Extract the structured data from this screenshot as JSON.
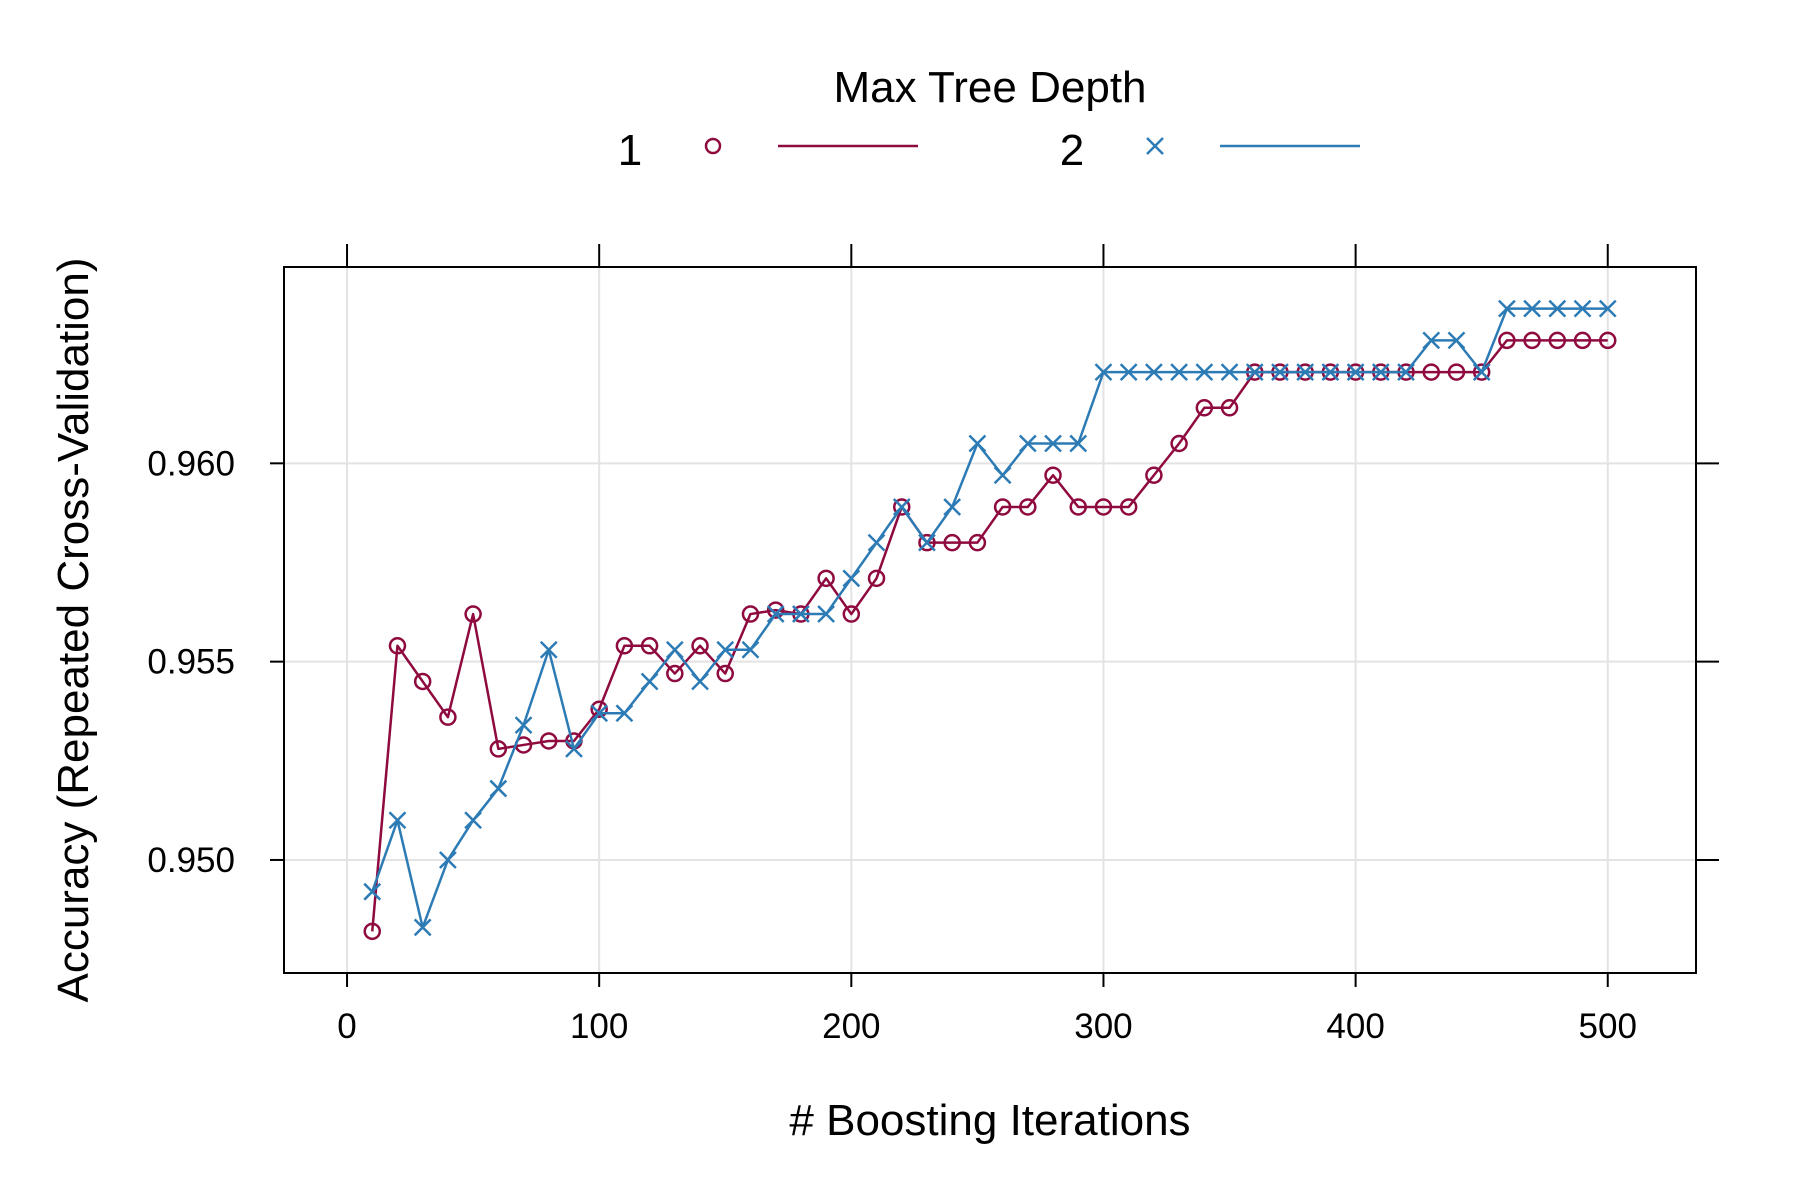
{
  "chart_data": {
    "type": "line",
    "xlabel": "# Boosting Iterations",
    "ylabel": "Accuracy (Repeated Cross-Validation)",
    "xlim": [
      -25,
      535
    ],
    "ylim": [
      0.94715,
      0.96495
    ],
    "x_ticks": [
      0,
      100,
      200,
      300,
      400,
      500
    ],
    "x_tick_labels": [
      "0",
      "100",
      "200",
      "300",
      "400",
      "500"
    ],
    "y_ticks": [
      0.95,
      0.955,
      0.96
    ],
    "y_tick_labels": [
      "0.950",
      "0.955",
      "0.960"
    ],
    "grid": true,
    "legend": {
      "title": "Max Tree Depth",
      "placement": "top"
    },
    "x": [
      10,
      20,
      30,
      40,
      50,
      60,
      70,
      80,
      90,
      100,
      110,
      120,
      130,
      140,
      150,
      160,
      170,
      180,
      190,
      200,
      210,
      220,
      230,
      240,
      250,
      260,
      270,
      280,
      290,
      300,
      310,
      320,
      330,
      340,
      350,
      360,
      370,
      380,
      390,
      400,
      410,
      420,
      430,
      440,
      450,
      460,
      470,
      480,
      490,
      500
    ],
    "series": [
      {
        "name": "1",
        "marker": "circle",
        "color": "#8e0a3f",
        "values": [
          0.9482,
          0.9554,
          0.9545,
          0.9536,
          0.9562,
          0.9528,
          0.9529,
          0.953,
          0.953,
          0.9538,
          0.9554,
          0.9554,
          0.9547,
          0.9554,
          0.9547,
          0.9562,
          0.9563,
          0.9562,
          0.9571,
          0.9562,
          0.9571,
          0.9589,
          0.958,
          0.958,
          0.958,
          0.9589,
          0.9589,
          0.9597,
          0.9589,
          0.9589,
          0.9589,
          0.9597,
          0.9605,
          0.9614,
          0.9614,
          0.9623,
          0.9623,
          0.9623,
          0.9623,
          0.9623,
          0.9623,
          0.9623,
          0.9623,
          0.9623,
          0.9623,
          0.9631,
          0.9631,
          0.9631,
          0.9631,
          0.9631
        ]
      },
      {
        "name": "2",
        "marker": "cross",
        "color": "#2d7bb5",
        "values": [
          0.9492,
          0.951,
          0.9483,
          0.95,
          0.951,
          0.9518,
          0.9534,
          0.9553,
          0.9528,
          0.9537,
          0.9537,
          0.9545,
          0.9553,
          0.9545,
          0.9553,
          0.9553,
          0.9562,
          0.9562,
          0.9562,
          0.9571,
          0.958,
          0.9589,
          0.958,
          0.9589,
          0.9605,
          0.9597,
          0.9605,
          0.9605,
          0.9605,
          0.9623,
          0.9623,
          0.9623,
          0.9623,
          0.9623,
          0.9623,
          0.9623,
          0.9623,
          0.9623,
          0.9623,
          0.9623,
          0.9623,
          0.9623,
          0.9631,
          0.9631,
          0.9623,
          0.9639,
          0.9639,
          0.9639,
          0.9639,
          0.9639
        ]
      }
    ]
  }
}
